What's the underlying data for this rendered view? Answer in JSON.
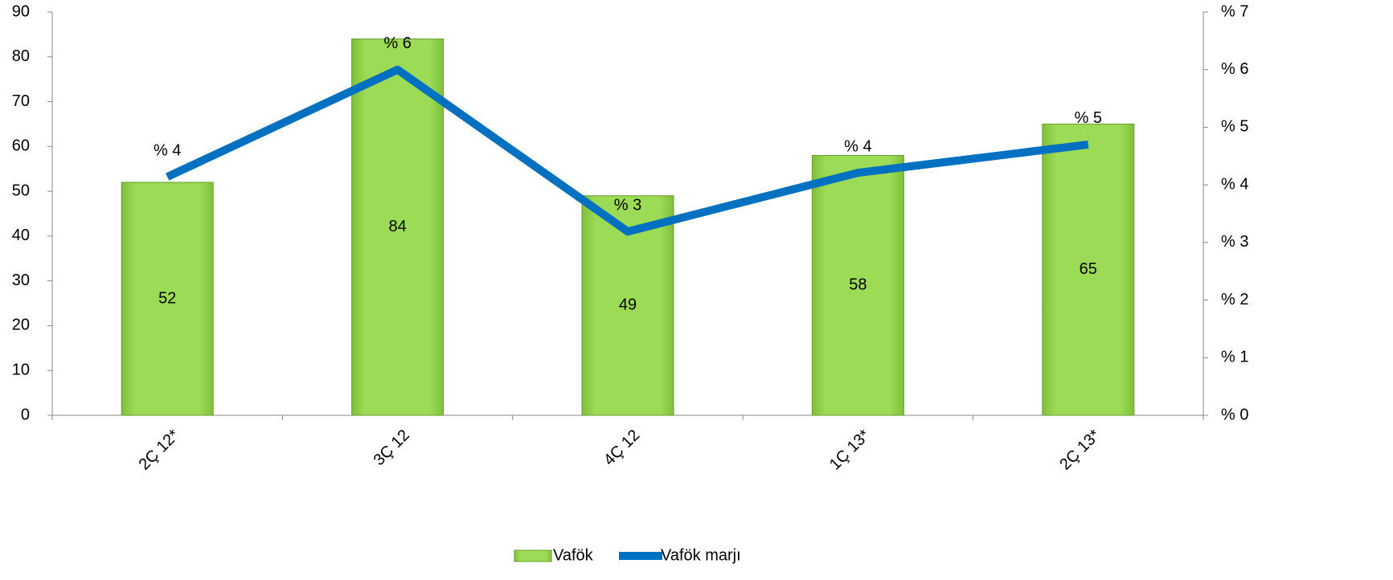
{
  "chart_data": {
    "type": "bar+line",
    "categories": [
      "2Ç 12*",
      "3Ç 12",
      "4Ç 12",
      "1Ç 13*",
      "2Ç 13*"
    ],
    "series": [
      {
        "name": "Vafök",
        "type": "bar",
        "color": "#92d050",
        "values": [
          52,
          84,
          49,
          58,
          65
        ]
      },
      {
        "name": "Vafök marjı",
        "type": "line",
        "axis": "y2",
        "color": "#0070c0",
        "values": [
          4.14,
          6.0,
          3.19,
          4.21,
          4.7
        ],
        "value_labels": [
          "% 4",
          "% 6",
          "% 3",
          "% 4",
          "% 5"
        ]
      }
    ],
    "ylim": [
      0,
      90
    ],
    "yticks": [
      0,
      10,
      20,
      30,
      40,
      50,
      60,
      70,
      80,
      90
    ],
    "y2lim": [
      0,
      7
    ],
    "y2ticks": [
      {
        "value": 0,
        "label": "% 0"
      },
      {
        "value": 1,
        "label": "% 1"
      },
      {
        "value": 2,
        "label": "% 2"
      },
      {
        "value": 3,
        "label": "% 3"
      },
      {
        "value": 4,
        "label": "% 4"
      },
      {
        "value": 5,
        "label": "% 5"
      },
      {
        "value": 6,
        "label": "% 6"
      },
      {
        "value": 7,
        "label": "% 7"
      }
    ],
    "legend": "bottom"
  }
}
